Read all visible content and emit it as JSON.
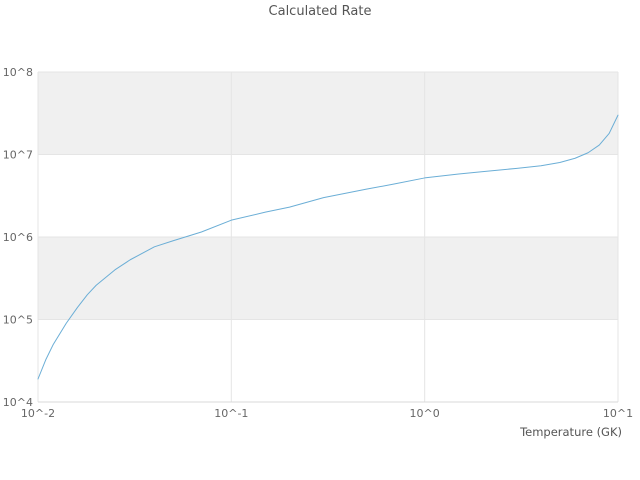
{
  "chart_data": {
    "type": "line",
    "title": "Calculated Rate",
    "xlabel": "Temperature (GK)",
    "ylabel": "",
    "x_scale": "log",
    "y_scale": "log",
    "xlim": [
      0.01,
      10
    ],
    "ylim": [
      10000,
      100000000
    ],
    "x_ticks": [
      {
        "value": 0.01,
        "label": "10^-2"
      },
      {
        "value": 0.1,
        "label": "10^-1"
      },
      {
        "value": 1,
        "label": "10^0"
      },
      {
        "value": 10,
        "label": "10^1"
      }
    ],
    "y_ticks": [
      {
        "value": 10000,
        "label": "10^4"
      },
      {
        "value": 100000,
        "label": "10^5"
      },
      {
        "value": 1000000,
        "label": "10^6"
      },
      {
        "value": 10000000,
        "label": "10^7"
      },
      {
        "value": 100000000,
        "label": "10^8"
      }
    ],
    "bands": [
      {
        "from": 10000000,
        "to": 100000000
      },
      {
        "from": 100000,
        "to": 1000000
      }
    ],
    "series": [
      {
        "name": "Calculated Rate",
        "x": [
          0.01,
          0.011,
          0.012,
          0.014,
          0.016,
          0.018,
          0.02,
          0.025,
          0.03,
          0.04,
          0.05,
          0.07,
          0.1,
          0.15,
          0.2,
          0.3,
          0.5,
          0.7,
          1.0,
          1.5,
          2.0,
          3.0,
          4.0,
          5.0,
          6.0,
          7.0,
          8.0,
          9.0,
          10.0
        ],
        "y": [
          19000,
          33000,
          50000,
          90000,
          140000,
          200000,
          260000,
          400000,
          530000,
          760000,
          900000,
          1150000,
          1600000,
          2000000,
          2300000,
          3000000,
          3800000,
          4400000,
          5200000,
          5800000,
          6200000,
          6800000,
          7300000,
          8000000,
          9000000,
          10500000,
          13000000,
          18000000,
          30000000
        ]
      }
    ],
    "style": {
      "line_color": "#6baed6",
      "band_color": "#f0f0f0",
      "grid_color": "#e5e5e5",
      "axis_line_color": "#d9d9d9",
      "tick_text_color": "#666666",
      "title_color": "#555555"
    },
    "legend": "none",
    "grid": true
  }
}
